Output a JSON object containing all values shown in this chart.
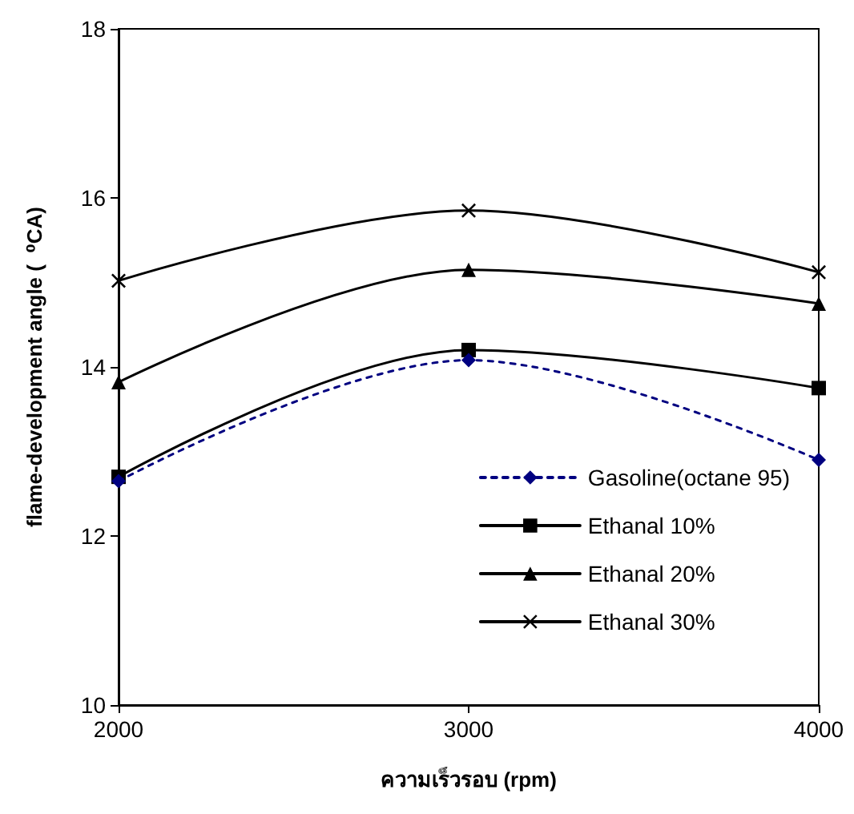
{
  "chart_data": {
    "type": "line",
    "xlabel": "ความเร็วรอบ (rpm)",
    "ylabel": "flame-development angle (  ⁰CA)",
    "x": [
      2000,
      3000,
      4000
    ],
    "series": [
      {
        "name": "Gasoline(octane 95)",
        "color": "#000080",
        "marker": "diamond",
        "line_style": "dashed",
        "values": [
          12.65,
          14.08,
          12.9
        ]
      },
      {
        "name": "Ethanal 10%",
        "color": "#000000",
        "marker": "square",
        "line_style": "solid",
        "values": [
          12.7,
          14.2,
          13.75
        ]
      },
      {
        "name": "Ethanal 20%",
        "color": "#000000",
        "marker": "triangle",
        "line_style": "solid",
        "values": [
          13.82,
          15.15,
          14.75
        ]
      },
      {
        "name": "Ethanal 30%",
        "color": "#000000",
        "marker": "cross",
        "line_style": "solid",
        "values": [
          15.02,
          15.85,
          15.12
        ]
      }
    ],
    "xlim": [
      2000,
      4000
    ],
    "xticks": [
      2000,
      3000,
      4000
    ],
    "ylim": [
      10,
      18
    ],
    "yticks": [
      10,
      12,
      14,
      16,
      18
    ],
    "grid": false,
    "legend": "bottom right"
  }
}
